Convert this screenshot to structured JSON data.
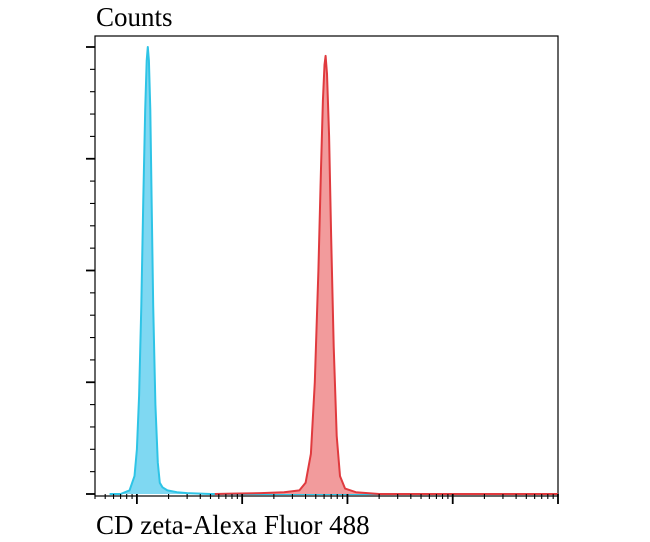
{
  "chart_data": {
    "type": "area",
    "title": "",
    "ylabel": "Counts",
    "xlabel": "CD zeta-Alexa Fluor 488",
    "x_scale": "log",
    "xlim": [
      0.4,
      10000
    ],
    "ylim": [
      0,
      1.0
    ],
    "grid": false,
    "legend": "none",
    "y_major_ticks": [
      0,
      0.25,
      0.5,
      0.75,
      1.0
    ],
    "y_minor_per_major": 5,
    "x_major_ticks": [
      1,
      10,
      100,
      1000,
      10000
    ],
    "series": [
      {
        "color": "#2ec4e6",
        "fill": "#7fd8f2",
        "points": [
          [
            0.55,
            0.0
          ],
          [
            0.7,
            0.0
          ],
          [
            0.85,
            0.008
          ],
          [
            0.95,
            0.04
          ],
          [
            1.0,
            0.1
          ],
          [
            1.05,
            0.22
          ],
          [
            1.1,
            0.42
          ],
          [
            1.15,
            0.66
          ],
          [
            1.2,
            0.86
          ],
          [
            1.24,
            0.97
          ],
          [
            1.27,
            1.0
          ],
          [
            1.3,
            0.97
          ],
          [
            1.34,
            0.86
          ],
          [
            1.38,
            0.66
          ],
          [
            1.43,
            0.42
          ],
          [
            1.5,
            0.2
          ],
          [
            1.58,
            0.07
          ],
          [
            1.65,
            0.025
          ],
          [
            1.75,
            0.015
          ],
          [
            1.95,
            0.008
          ],
          [
            2.4,
            0.004
          ],
          [
            3.0,
            0.002
          ],
          [
            5.0,
            0.0
          ],
          [
            30.0,
            0.0
          ],
          [
            10000,
            0.0
          ]
        ]
      },
      {
        "color": "#e03a3e",
        "fill": "#f29b9c",
        "points": [
          [
            5.5,
            0.0
          ],
          [
            8.0,
            0.001
          ],
          [
            15.0,
            0.002
          ],
          [
            25.0,
            0.004
          ],
          [
            35.0,
            0.008
          ],
          [
            40.0,
            0.025
          ],
          [
            45.0,
            0.09
          ],
          [
            49.0,
            0.25
          ],
          [
            53.0,
            0.5
          ],
          [
            56.0,
            0.72
          ],
          [
            58.5,
            0.88
          ],
          [
            60.5,
            0.96
          ],
          [
            62.0,
            0.98
          ],
          [
            64.0,
            0.94
          ],
          [
            67.0,
            0.8
          ],
          [
            70.0,
            0.58
          ],
          [
            74.0,
            0.33
          ],
          [
            79.0,
            0.13
          ],
          [
            85.0,
            0.04
          ],
          [
            95.0,
            0.012
          ],
          [
            120.0,
            0.004
          ],
          [
            200.0,
            0.0
          ],
          [
            10000,
            0.0
          ]
        ]
      }
    ]
  }
}
